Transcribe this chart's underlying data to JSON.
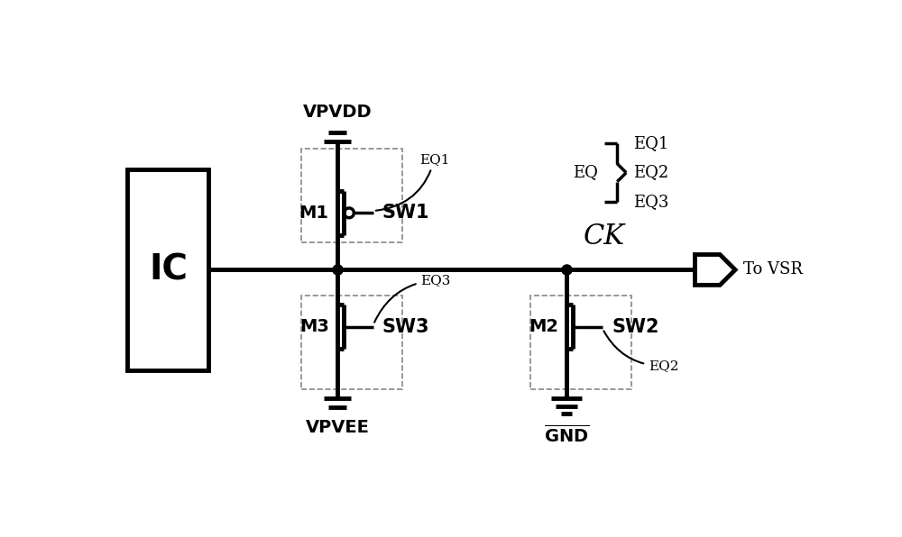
{
  "bg_color": "#ffffff",
  "line_color": "#000000",
  "lw": 2.5,
  "lw_thick": 3.5,
  "fig_width": 10.0,
  "fig_height": 5.96,
  "xlim": [
    0,
    10
  ],
  "ylim": [
    0,
    5.96
  ]
}
